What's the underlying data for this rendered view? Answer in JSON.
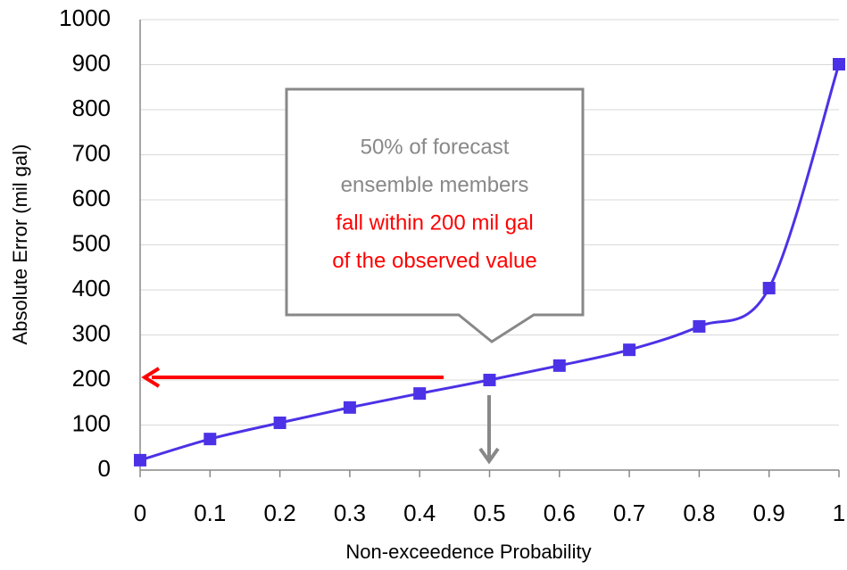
{
  "chart_data": {
    "type": "line",
    "xlabel": "Non-exceedence Probability",
    "ylabel": "Absolute Error (mil gal)",
    "x": [
      0,
      0.1,
      0.2,
      0.3,
      0.4,
      0.5,
      0.6,
      0.7,
      0.8,
      0.9,
      1
    ],
    "values": [
      22,
      69,
      105,
      139,
      170,
      200,
      232,
      267,
      319,
      404,
      901
    ],
    "color": "#4b32e6",
    "xlim": [
      0,
      1
    ],
    "xticks": [
      0,
      0.1,
      0.2,
      0.3,
      0.4,
      0.5,
      0.6,
      0.7,
      0.8,
      0.9,
      1
    ],
    "ylim": [
      0,
      1000
    ],
    "yticks": [
      0,
      100,
      200,
      300,
      400,
      500,
      600,
      700,
      800,
      900,
      1000
    ],
    "grid": true,
    "annotation": [
      {
        "text": "50% of forecast",
        "color": "#888888"
      },
      {
        "text": "ensemble members",
        "color": "#888888"
      },
      {
        "text": "fall within 200 mil gal",
        "color": "#ff0000"
      },
      {
        "text": "of the observed value",
        "color": "#ff0000"
      }
    ]
  }
}
